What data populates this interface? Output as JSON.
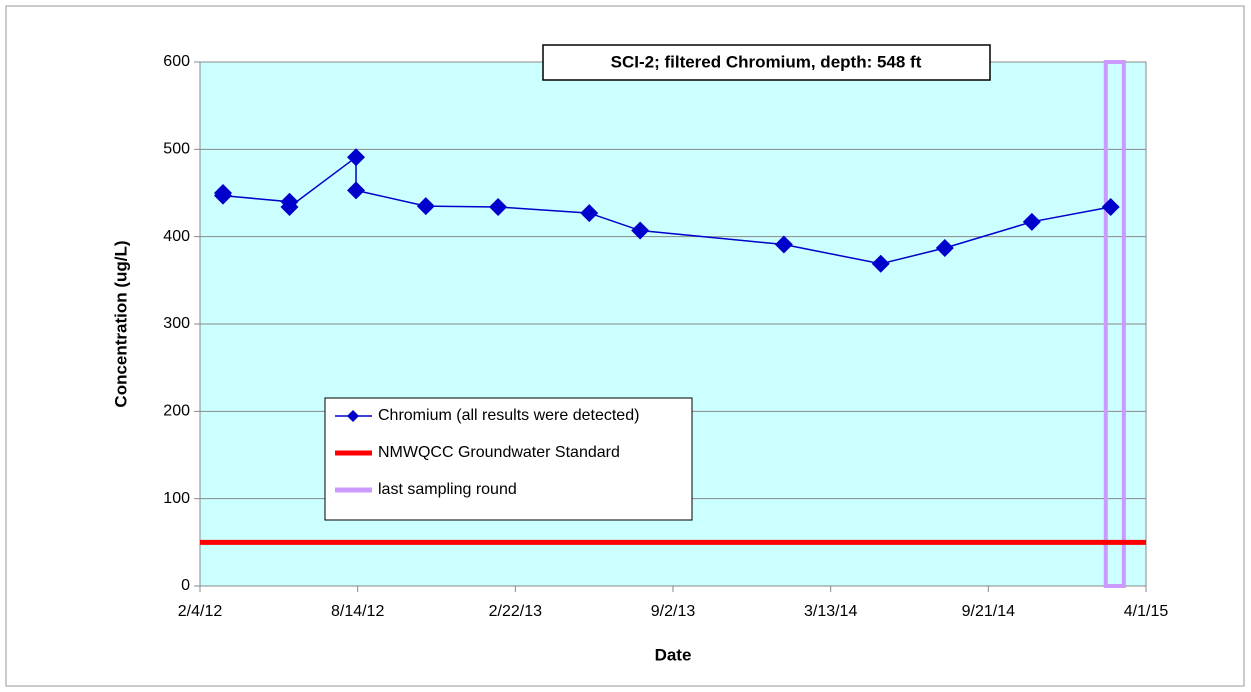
{
  "chart_data": {
    "type": "line",
    "title": "SCI-2;  filtered Chromium, depth: 548 ft",
    "x_label": "Date",
    "y_label": "Concentration (ug/L)",
    "x": [
      "3/3/12",
      "3/3/12",
      "5/23/12",
      "5/23/12",
      "8/12/12",
      "8/12/12",
      "11/5/12",
      "2/1/13",
      "5/23/13",
      "7/24/13",
      "1/15/14",
      "5/13/14",
      "7/30/14",
      "11/13/14",
      "2/17/15"
    ],
    "series": [
      {
        "name": "Chromium (all results were detected)",
        "color": "#0000cc",
        "values": [
          450,
          447,
          440,
          434,
          491,
          453,
          435,
          434,
          427,
          407,
          391,
          369,
          387,
          417,
          434
        ]
      }
    ],
    "standard": {
      "name": "NMWQCC Groundwater Standard",
      "color": "#ff0000",
      "value": 50
    },
    "highlight": {
      "name": "last sampling round",
      "color": "#cc99ff",
      "xlim": [
        "2/11/15",
        "3/5/15"
      ]
    },
    "xlim": [
      "2/4/12",
      "4/1/15"
    ],
    "xticks": [
      "2/4/12",
      "8/14/12",
      "2/22/13",
      "9/2/13",
      "3/13/14",
      "9/21/14",
      "4/1/15"
    ],
    "ylim": [
      0,
      600
    ],
    "yticks": [
      0,
      100,
      200,
      300,
      400,
      500,
      600
    ],
    "grid": true,
    "plot_background": "#ccffff"
  }
}
